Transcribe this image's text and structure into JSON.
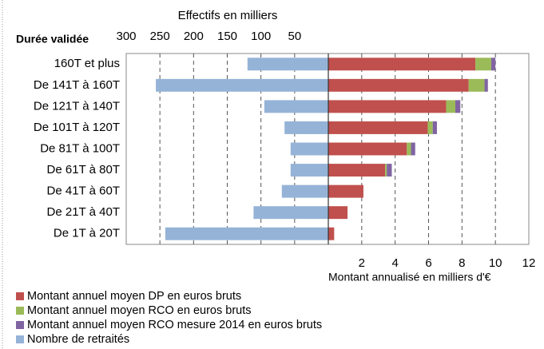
{
  "chart_data": {
    "type": "bar",
    "stacked": true,
    "grid": true,
    "category_title": "Durée validée",
    "categories": [
      "160T et plus",
      "De 141T à 160T",
      "De 121T à 140T",
      "De 101T à 120T",
      "De 81T à 100T",
      "De 61T à 80T",
      "De 41T à 60T",
      "De 21T à 40T",
      "De 1T à 20T"
    ],
    "xlabel_left": "Effectifs en milliers",
    "xlim_left": [
      0,
      300
    ],
    "xticks_left": [
      300,
      250,
      200,
      150,
      100,
      50
    ],
    "xlabel": "Montant annualisé en milliers d'€",
    "xlim": [
      0,
      12
    ],
    "xticks": [
      2,
      4,
      6,
      8,
      10,
      12
    ],
    "legend": "bottom-left",
    "series": [
      {
        "name": "Montant annuel moyen DP en euros bruts",
        "color": "#c0504d",
        "values": [
          8.8,
          8.4,
          7.05,
          5.95,
          4.7,
          3.4,
          2.1,
          1.15,
          0.35
        ]
      },
      {
        "name": "Montant annuel moyen RCO en euros bruts",
        "color": "#9bbb59",
        "values": [
          0.95,
          0.95,
          0.55,
          0.3,
          0.25,
          0.1,
          0,
          0,
          0
        ]
      },
      {
        "name": "Montant annuel moyen RCO mesure 2014 en euros bruts",
        "color": "#8064a2",
        "values": [
          0.25,
          0.2,
          0.3,
          0.25,
          0.25,
          0.3,
          0,
          0,
          0
        ]
      },
      {
        "name": "Nombre de retraités",
        "color": "#95b3d7",
        "axis": "left",
        "values": [
          120,
          256,
          95,
          65,
          56,
          56,
          69,
          111,
          242
        ]
      }
    ]
  }
}
